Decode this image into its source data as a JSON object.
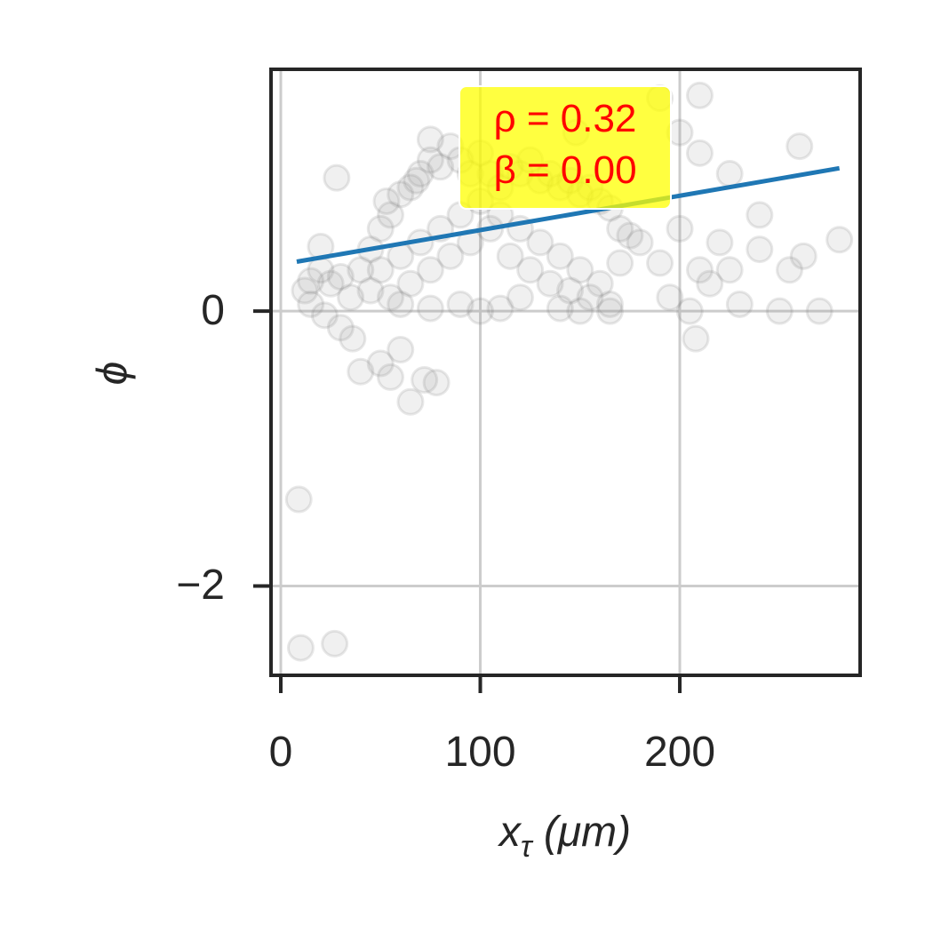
{
  "chart_data": {
    "type": "scatter",
    "xlabel": [
      "x",
      "τ",
      " (μm)"
    ],
    "ylabel": "ϕ",
    "annotation": [
      "ρ = 0.32",
      "β = 0.00"
    ],
    "xlim": [
      -4.9,
      290.4
    ],
    "ylim": [
      -2.65,
      1.76
    ],
    "xticks": [
      0,
      100,
      200
    ],
    "yticks": [
      {
        "value": -2,
        "label": "−2"
      },
      0
    ],
    "grid": true,
    "points": {
      "color": "#808080",
      "x": [
        9,
        10,
        27,
        28,
        20,
        15,
        40,
        55,
        65,
        72,
        78,
        50,
        60,
        36,
        30,
        22,
        15,
        12,
        20,
        25,
        30,
        35,
        40,
        45,
        50,
        55,
        60,
        65,
        70,
        75,
        80,
        85,
        90,
        95,
        100,
        105,
        110,
        115,
        120,
        125,
        130,
        135,
        140,
        145,
        150,
        155,
        160,
        165,
        170,
        175,
        180,
        45,
        50,
        55,
        60,
        65,
        70,
        75,
        80,
        85,
        90,
        95,
        100,
        105,
        110,
        115,
        120,
        125,
        130,
        135,
        140,
        145,
        150,
        155,
        160,
        165,
        170,
        90,
        100,
        110,
        120,
        75,
        60,
        140,
        150,
        165,
        190,
        195,
        200,
        205,
        208,
        210,
        215,
        220,
        225,
        230,
        240,
        250,
        255,
        262,
        270,
        280,
        210,
        200,
        225,
        240,
        260,
        190,
        210,
        148,
        75,
        68,
        53
      ],
      "y": [
        -1.37,
        -2.45,
        -2.42,
        0.97,
        0.47,
        0.22,
        -0.44,
        -0.48,
        -0.66,
        -0.5,
        -0.52,
        -0.38,
        -0.28,
        -0.2,
        -0.12,
        -0.03,
        0.05,
        0.15,
        0.3,
        0.2,
        0.25,
        0.1,
        0.3,
        0.45,
        0.6,
        0.7,
        0.85,
        0.9,
        1.0,
        1.1,
        1.05,
        1.2,
        1.1,
        1.0,
        1.15,
        1.0,
        0.9,
        1.05,
        1.0,
        1.1,
        0.95,
        1.0,
        0.9,
        0.95,
        0.85,
        0.9,
        0.8,
        0.75,
        0.6,
        0.55,
        0.5,
        0.15,
        0.3,
        0.1,
        0.4,
        0.2,
        0.5,
        0.3,
        0.6,
        0.4,
        0.7,
        0.5,
        0.8,
        0.6,
        0.7,
        0.4,
        0.6,
        0.3,
        0.5,
        0.2,
        0.4,
        0.15,
        0.3,
        0.1,
        0.2,
        0.05,
        0.35,
        0.05,
        0.0,
        0.02,
        0.1,
        0.02,
        0.05,
        0.02,
        0.0,
        0.0,
        0.35,
        0.1,
        0.6,
        0.0,
        -0.2,
        0.3,
        0.2,
        0.5,
        0.3,
        0.05,
        0.45,
        0.0,
        0.3,
        0.4,
        0.0,
        0.52,
        1.15,
        1.3,
        1.0,
        0.7,
        1.2,
        1.55,
        1.57,
        1.3,
        1.25,
        0.95,
        0.8
      ]
    },
    "fit": {
      "color": "#1f77b4",
      "x": [
        8,
        280
      ],
      "y": [
        0.36,
        1.04
      ]
    }
  }
}
